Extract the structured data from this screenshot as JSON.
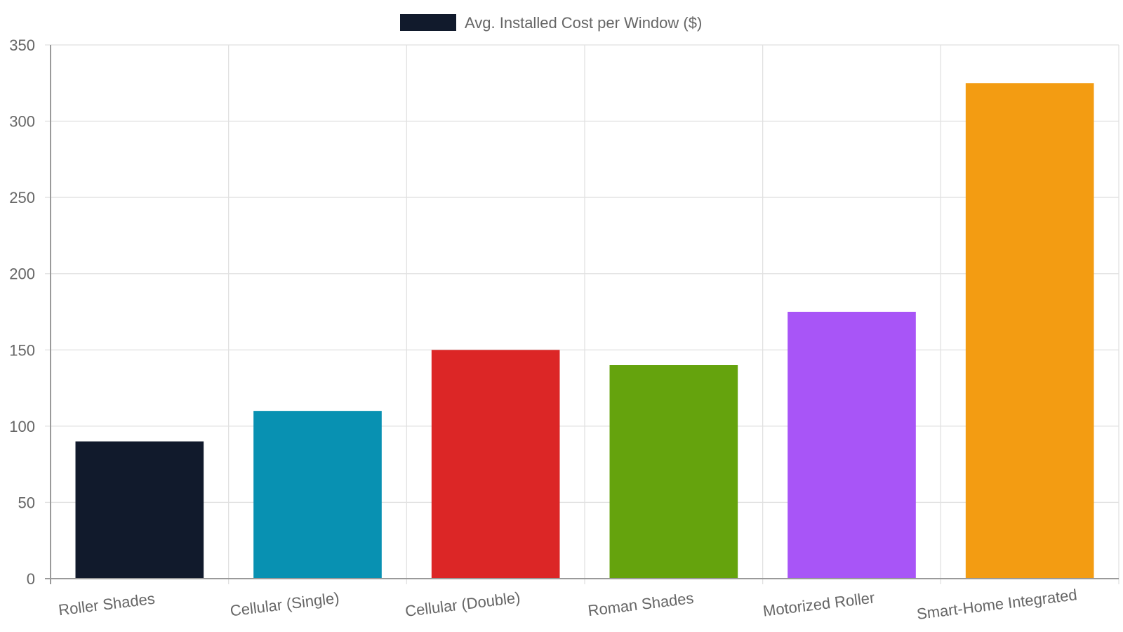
{
  "chart_data": {
    "type": "bar",
    "categories": [
      "Roller Shades",
      "Cellular (Single)",
      "Cellular (Double)",
      "Roman Shades",
      "Motorized Roller",
      "Smart-Home Integrated"
    ],
    "series": [
      {
        "name": "Avg. Installed Cost per Window ($)",
        "values": [
          90,
          110,
          150,
          140,
          175,
          325
        ],
        "colors": [
          "#111a2c",
          "#0891b2",
          "#dc2626",
          "#65a30d",
          "#a855f7",
          "#f39c12"
        ],
        "legend_color": "#111a2c"
      }
    ],
    "ylim": [
      0,
      350
    ],
    "yticks": [
      0,
      50,
      100,
      150,
      200,
      250,
      300,
      350
    ],
    "grid": true,
    "legend_position": "top-center",
    "title": "",
    "xlabel": "",
    "ylabel": ""
  }
}
